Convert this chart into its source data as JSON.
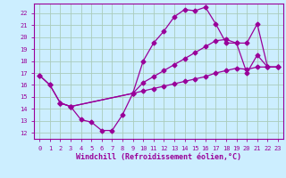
{
  "xlabel": "Windchill (Refroidissement éolien,°C)",
  "bg_color": "#cceeff",
  "line_color": "#990099",
  "grid_color": "#aaccbb",
  "axis_color": "#770077",
  "xlim": [
    -0.5,
    23.5
  ],
  "ylim": [
    11.5,
    22.8
  ],
  "xticks": [
    0,
    1,
    2,
    3,
    4,
    5,
    6,
    7,
    8,
    9,
    10,
    11,
    12,
    13,
    14,
    15,
    16,
    17,
    18,
    19,
    20,
    21,
    22,
    23
  ],
  "yticks": [
    12,
    13,
    14,
    15,
    16,
    17,
    18,
    19,
    20,
    21,
    22
  ],
  "curve1_x": [
    0,
    1,
    2,
    3,
    4,
    5,
    6,
    7,
    8,
    9,
    10,
    11,
    12,
    13,
    14,
    15,
    16,
    17,
    18,
    19,
    20,
    21,
    22,
    23
  ],
  "curve1_y": [
    16.8,
    16.0,
    14.5,
    14.2,
    13.1,
    12.9,
    12.2,
    12.2,
    13.5,
    15.3,
    18.0,
    19.5,
    20.5,
    21.7,
    22.3,
    22.2,
    22.5,
    21.1,
    19.5,
    19.5,
    17.0,
    18.5,
    17.5,
    17.5
  ],
  "curve2_x": [
    0,
    1,
    2,
    3,
    9,
    10,
    11,
    12,
    13,
    14,
    15,
    16,
    17,
    18,
    19,
    20,
    21,
    22,
    23
  ],
  "curve2_y": [
    16.8,
    16.0,
    14.5,
    14.2,
    15.3,
    15.5,
    15.7,
    15.9,
    16.1,
    16.3,
    16.5,
    16.7,
    17.0,
    17.2,
    17.4,
    17.3,
    17.5,
    17.5,
    17.5
  ],
  "curve3_x": [
    2,
    3,
    9,
    10,
    11,
    12,
    13,
    14,
    15,
    16,
    17,
    18,
    19,
    20,
    21,
    22,
    23
  ],
  "curve3_y": [
    14.5,
    14.2,
    15.3,
    16.2,
    16.7,
    17.2,
    17.7,
    18.2,
    18.7,
    19.2,
    19.7,
    19.8,
    19.5,
    19.5,
    21.1,
    17.5,
    17.5
  ],
  "marker_style": "D",
  "marker_size": 2.5,
  "line_width": 0.9,
  "xlabel_fontsize": 6,
  "tick_fontsize": 5
}
